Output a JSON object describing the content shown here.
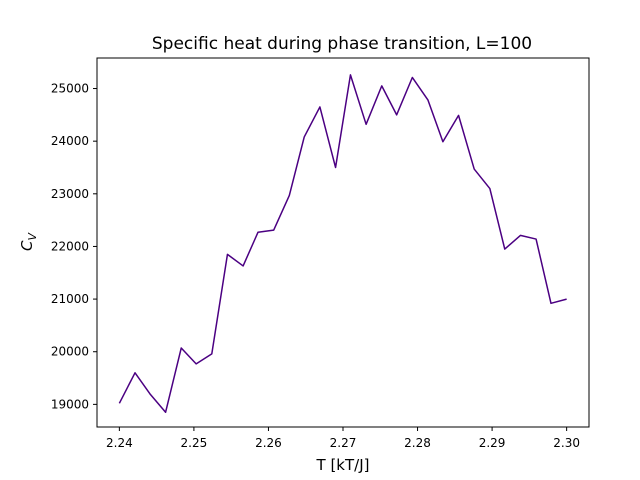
{
  "chart_data": {
    "type": "line",
    "title": "Specific heat during phase transition, L=100",
    "xlabel": "T [kT/J]",
    "ylabel": {
      "base": "C",
      "sub": "V"
    },
    "xlim": [
      2.237,
      2.303
    ],
    "ylim": [
      18570,
      25580
    ],
    "grid": false,
    "x_ticks": [
      2.24,
      2.25,
      2.26,
      2.27,
      2.28,
      2.29,
      2.3
    ],
    "x_tick_labels": [
      "2.24",
      "2.25",
      "2.26",
      "2.27",
      "2.28",
      "2.29",
      "2.30"
    ],
    "y_ticks": [
      19000,
      20000,
      21000,
      22000,
      23000,
      24000,
      25000
    ],
    "y_tick_labels": [
      "19000",
      "20000",
      "21000",
      "22000",
      "23000",
      "24000",
      "25000"
    ],
    "series": [
      {
        "color": "#4b0082",
        "x": [
          2.24,
          2.2421,
          2.2441,
          2.2462,
          2.2483,
          2.2503,
          2.2524,
          2.2545,
          2.2566,
          2.2586,
          2.2607,
          2.2628,
          2.2648,
          2.2669,
          2.269,
          2.271,
          2.2731,
          2.2752,
          2.2772,
          2.2793,
          2.2814,
          2.2834,
          2.2855,
          2.2876,
          2.2897,
          2.2917,
          2.2938,
          2.2959,
          2.2979,
          2.3
        ],
        "y": [
          19020,
          19600,
          19200,
          18850,
          20070,
          19770,
          19960,
          21850,
          21630,
          22270,
          22310,
          22970,
          24080,
          24650,
          23500,
          25260,
          24320,
          25050,
          24500,
          25210,
          24780,
          23990,
          24490,
          23470,
          23100,
          21950,
          22210,
          22140,
          20920,
          21000
        ]
      }
    ]
  }
}
